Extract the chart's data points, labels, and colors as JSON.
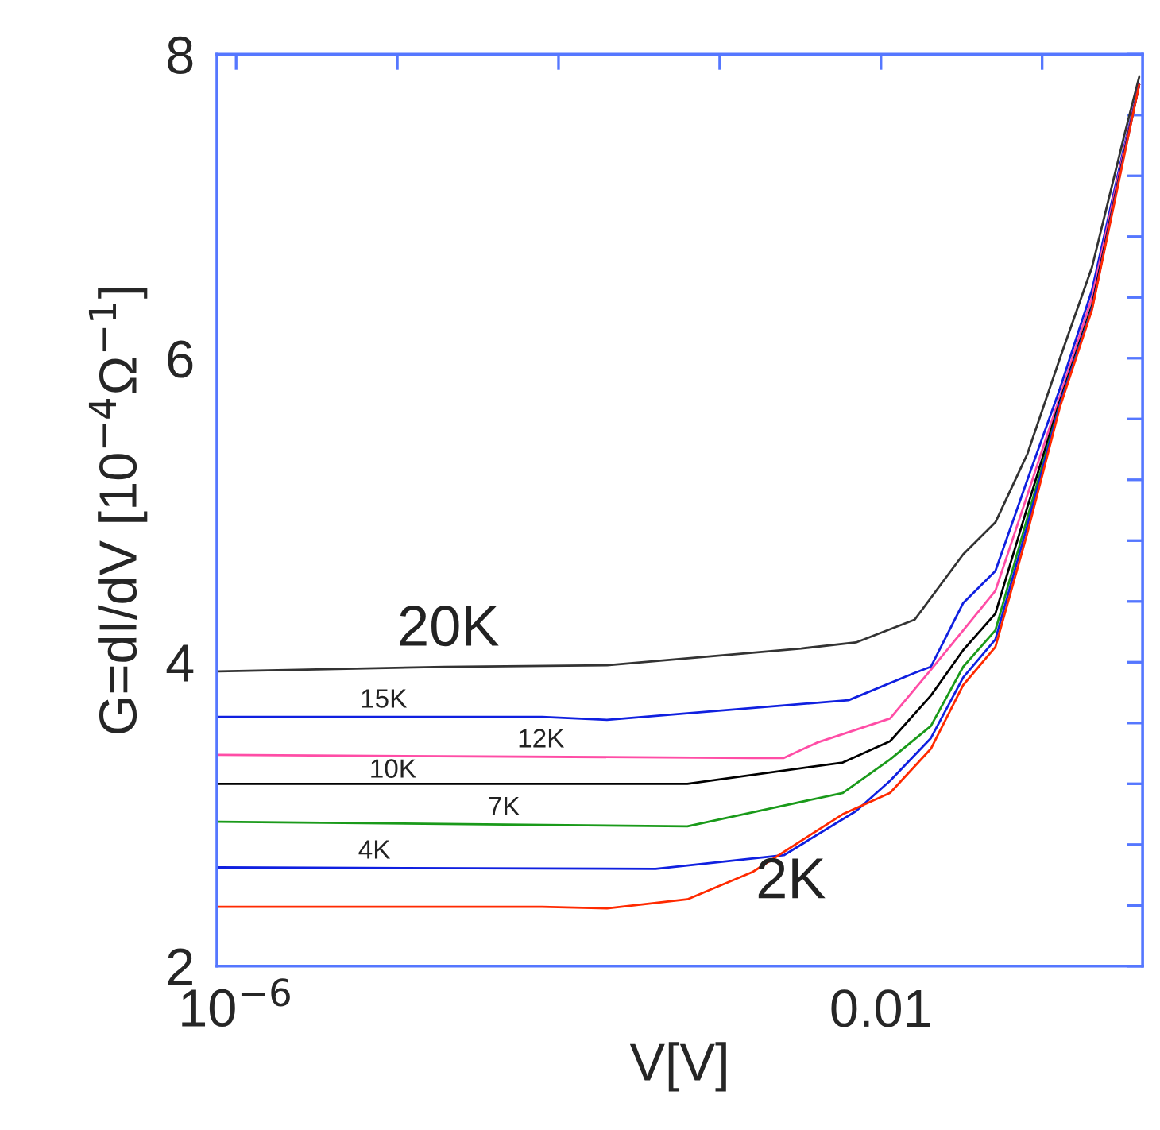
{
  "chart_data": {
    "type": "line",
    "xlabel": "V[V]",
    "ylabel": "G=dI/dV [10$^{−4}$Ω$^{−1}$]",
    "log": "x",
    "grid": false,
    "legend": false,
    "marker": "none",
    "line_style": "solid",
    "xlim": [
      7.6e-07,
      0.42
    ],
    "ylim": [
      2,
      8
    ],
    "xticks": [
      {
        "value": 1e-06,
        "label": "10$^{−6}$"
      },
      {
        "value": 1e-05,
        "label": null
      },
      {
        "value": 0.0001,
        "label": null
      },
      {
        "value": 0.001,
        "label": null
      },
      0.01,
      {
        "value": 0.1,
        "label": null
      }
    ],
    "yticks": [
      2,
      {
        "value": 2.4,
        "label": null
      },
      {
        "value": 2.8,
        "label": null
      },
      {
        "value": 3.2,
        "label": null
      },
      {
        "value": 3.6,
        "label": null
      },
      4,
      {
        "value": 4.4,
        "label": null
      },
      {
        "value": 4.8,
        "label": null
      },
      {
        "value": 5.2,
        "label": null
      },
      {
        "value": 5.6,
        "label": null
      },
      6,
      {
        "value": 6.4,
        "label": null
      },
      {
        "value": 6.8,
        "label": null
      },
      {
        "value": 7.2,
        "label": null
      },
      {
        "value": 7.6,
        "label": null
      },
      8
    ],
    "series": [
      {
        "name": "20K",
        "color": "#333333",
        "x": [
          7.8e-07,
          1.97e-05,
          0.0002,
          0.0032,
          0.007,
          0.0162,
          0.0324,
          0.0513,
          0.081,
          0.129,
          0.204,
          0.324,
          0.4
        ],
        "values": [
          3.94,
          3.97,
          3.98,
          4.09,
          4.13,
          4.28,
          4.71,
          4.92,
          5.37,
          6.0,
          6.6,
          7.47,
          7.85
        ]
      },
      {
        "name": "15K",
        "color": "#1020e0",
        "x": [
          7.8e-07,
          7.9e-05,
          0.0002,
          0.0063,
          0.0162,
          0.0204,
          0.0324,
          0.0513,
          0.081,
          0.129,
          0.204,
          0.324,
          0.4
        ],
        "values": [
          3.64,
          3.64,
          3.62,
          3.75,
          3.93,
          3.97,
          4.39,
          4.6,
          5.2,
          5.8,
          6.45,
          7.4,
          7.8
        ]
      },
      {
        "name": "12K",
        "color": "#ff4da6",
        "x": [
          7.8e-07,
          0.0016,
          0.0025,
          0.004,
          0.0114,
          0.0204,
          0.0324,
          0.0513,
          0.081,
          0.129,
          0.204,
          0.324,
          0.4
        ],
        "values": [
          3.39,
          3.37,
          3.37,
          3.47,
          3.63,
          3.95,
          4.21,
          4.47,
          5.1,
          5.75,
          6.4,
          7.38,
          7.8
        ]
      },
      {
        "name": "10K",
        "color": "#000000",
        "x": [
          7.8e-07,
          0.00063,
          0.0058,
          0.0114,
          0.0204,
          0.0324,
          0.0513,
          0.081,
          0.129,
          0.204,
          0.324,
          0.4
        ],
        "values": [
          3.2,
          3.2,
          3.34,
          3.48,
          3.78,
          4.08,
          4.32,
          5.02,
          5.72,
          6.35,
          7.36,
          7.8
        ]
      },
      {
        "name": "7K",
        "color": "#1a9a1a",
        "x": [
          7.8e-07,
          0.00063,
          0.0058,
          0.0114,
          0.0204,
          0.0324,
          0.0513,
          0.081,
          0.129,
          0.204
        ],
        "values": [
          2.95,
          2.92,
          3.14,
          3.36,
          3.58,
          3.97,
          4.21,
          4.95,
          5.7,
          6.33
        ]
      },
      {
        "name": "4K",
        "color": "#1020e0",
        "x": [
          7.8e-07,
          0.0004,
          0.0025,
          0.007,
          0.0114,
          0.0204,
          0.0324,
          0.0513,
          0.081,
          0.129,
          0.204,
          0.324,
          0.4
        ],
        "values": [
          2.65,
          2.64,
          2.73,
          3.02,
          3.22,
          3.5,
          3.9,
          4.15,
          4.9,
          5.7,
          6.33,
          7.35,
          7.8
        ]
      },
      {
        "name": "2K",
        "color": "#ff2a00",
        "x": [
          7.8e-07,
          7.9e-05,
          0.0002,
          0.00063,
          0.0016,
          0.0058,
          0.0114,
          0.0204,
          0.0324,
          0.0513,
          0.081,
          0.129,
          0.204,
          0.324,
          0.4
        ],
        "values": [
          2.39,
          2.39,
          2.38,
          2.44,
          2.62,
          3.0,
          3.14,
          3.43,
          3.85,
          4.1,
          4.85,
          5.68,
          6.32,
          7.34,
          7.8
        ]
      }
    ]
  }
}
